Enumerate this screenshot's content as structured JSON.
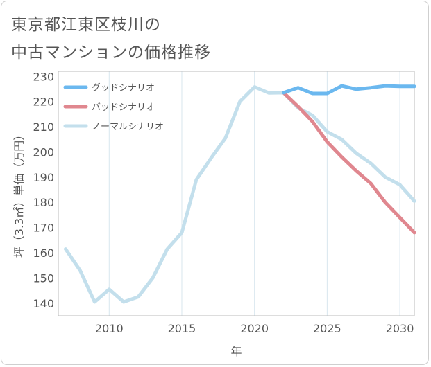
{
  "header": {
    "title_line1": "東京都江東区枝川の",
    "title_line2": "中古マンションの価格推移"
  },
  "chart_data": {
    "type": "line",
    "xlabel": "年",
    "ylabel": "坪（3.3㎡）単価（万円）",
    "xlim": [
      2006.5,
      2031
    ],
    "ylim": [
      135,
      232
    ],
    "x_ticks": [
      2010,
      2015,
      2020,
      2025,
      2030
    ],
    "y_ticks": [
      140,
      150,
      160,
      170,
      180,
      190,
      200,
      210,
      220,
      230
    ],
    "grid": true,
    "legend_position": "top-left",
    "series": [
      {
        "name": "グッドシナリオ",
        "color": "#6bb8ef",
        "x": [
          2022,
          2023,
          2024,
          2025,
          2026,
          2027,
          2028,
          2029,
          2030,
          2031
        ],
        "values": [
          223.5,
          225.5,
          223.2,
          223.2,
          226.2,
          224.9,
          225.5,
          226.2,
          226.0,
          226.0
        ]
      },
      {
        "name": "バッドシナリオ",
        "color": "#e0878f",
        "x": [
          2022,
          2023,
          2024,
          2025,
          2026,
          2027,
          2028,
          2029,
          2030,
          2031
        ],
        "values": [
          223.5,
          218.0,
          212.0,
          204.0,
          198.0,
          192.5,
          187.5,
          180.0,
          174.0,
          168.0
        ]
      },
      {
        "name": "ノーマルシナリオ",
        "color": "#c3dfec",
        "x": [
          2007,
          2008,
          2009,
          2010,
          2011,
          2012,
          2013,
          2014,
          2015,
          2016,
          2017,
          2018,
          2019,
          2020,
          2021,
          2022,
          2023,
          2024,
          2025,
          2026,
          2027,
          2028,
          2029,
          2030,
          2031
        ],
        "values": [
          161.5,
          153.0,
          140.5,
          145.5,
          140.5,
          142.5,
          150.0,
          161.5,
          168.0,
          189.0,
          197.5,
          205.5,
          220.0,
          225.8,
          223.4,
          223.5,
          217.5,
          214.5,
          208.0,
          205.0,
          199.5,
          195.5,
          190.0,
          187.0,
          180.5
        ]
      }
    ]
  }
}
